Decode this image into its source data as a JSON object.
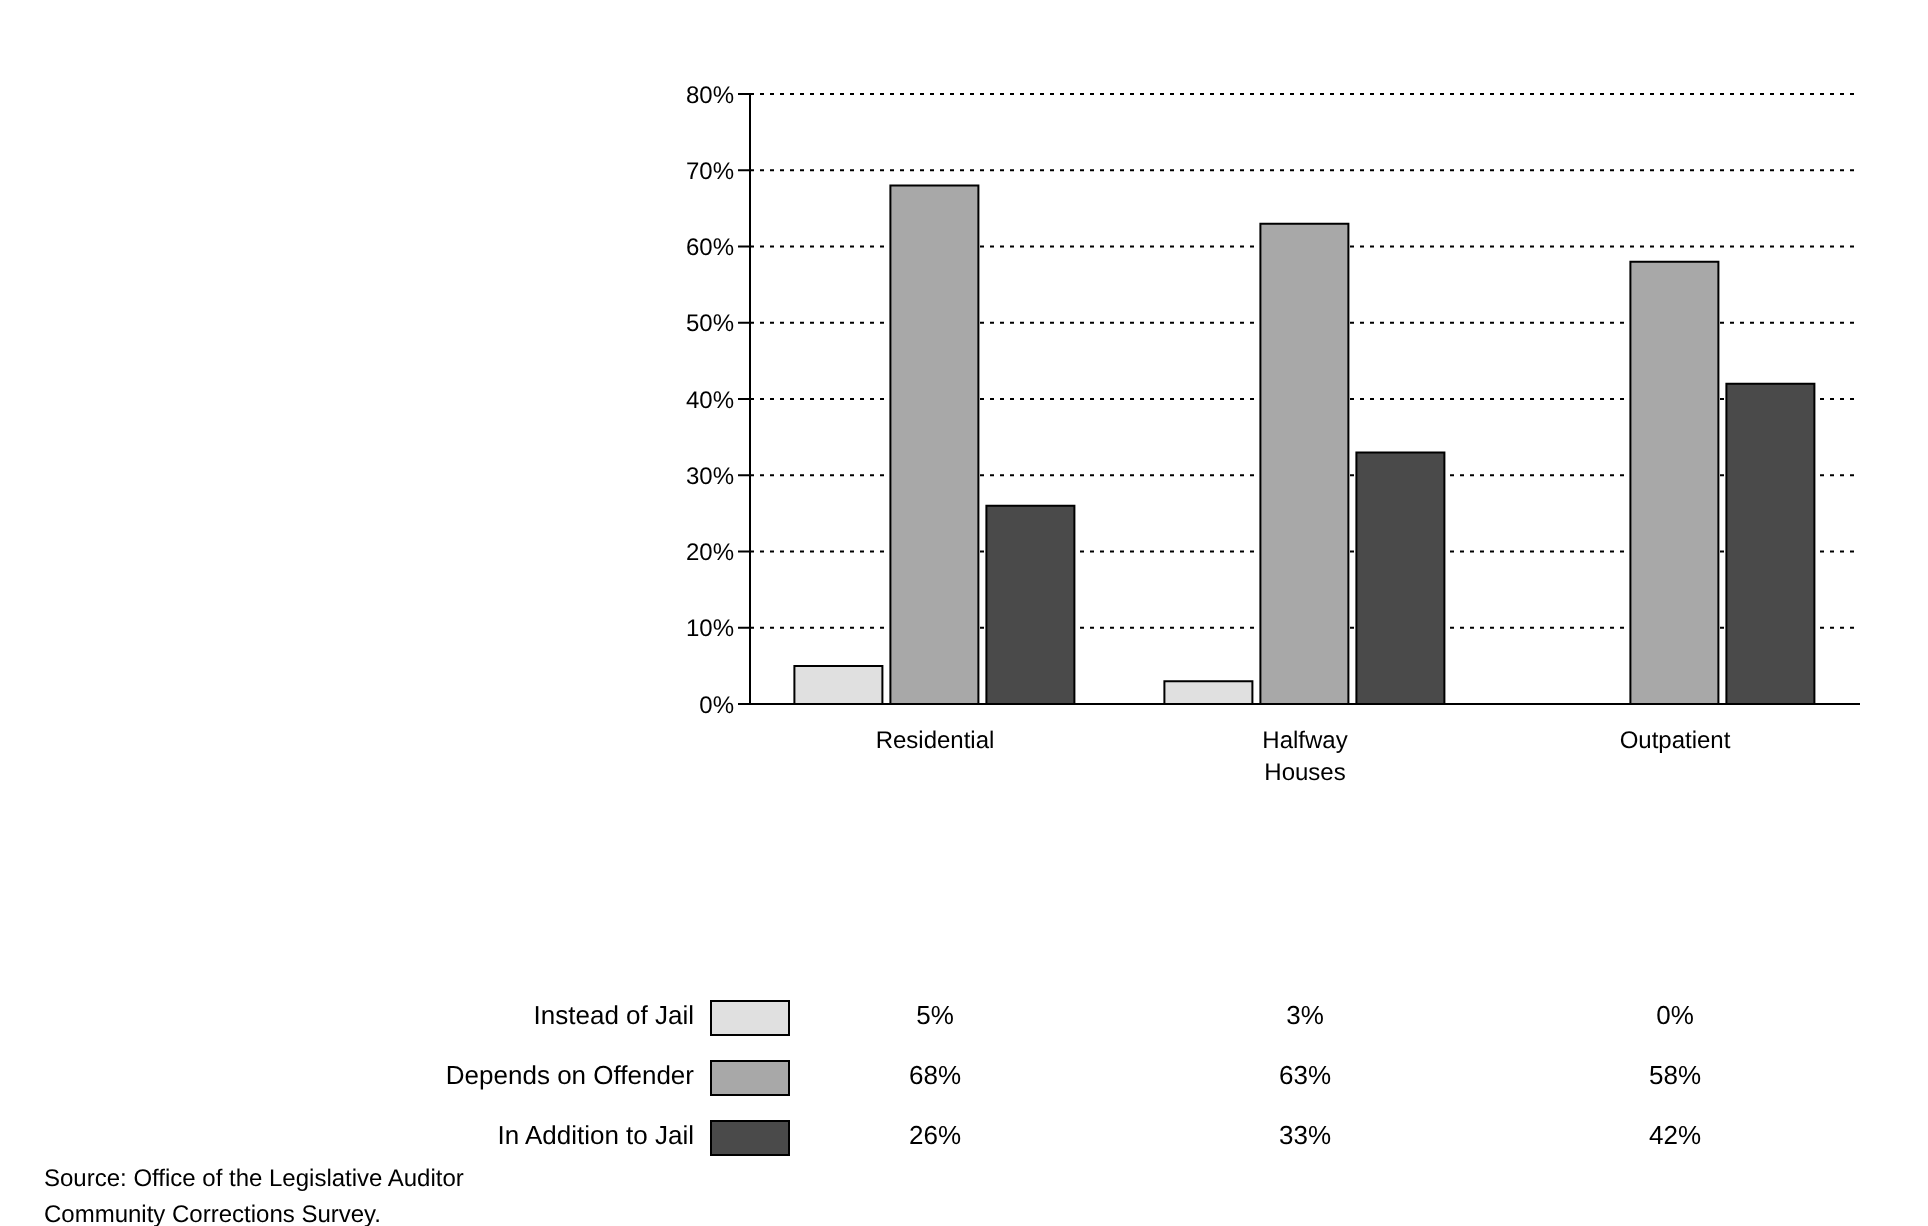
{
  "chart_data": {
    "type": "bar",
    "categories": [
      "Residential",
      "Halfway Houses",
      "Outpatient"
    ],
    "series": [
      {
        "name": "Instead of Jail",
        "color": "#e0e0e0",
        "values": [
          5,
          3,
          0
        ],
        "value_labels": [
          "5%",
          "3%",
          "0%"
        ]
      },
      {
        "name": "Depends on Offender",
        "color": "#a8a8a8",
        "values": [
          68,
          63,
          58
        ],
        "value_labels": [
          "68%",
          "63%",
          "58%"
        ]
      },
      {
        "name": "In Addition to Jail",
        "color": "#4a4a4a",
        "values": [
          26,
          33,
          42
        ],
        "value_labels": [
          "26%",
          "33%",
          "42%"
        ]
      }
    ],
    "ylim": [
      0,
      80
    ],
    "yticks": [
      {
        "value": 0,
        "label": "0%"
      },
      {
        "value": 10,
        "label": "10%"
      },
      {
        "value": 20,
        "label": "20%"
      },
      {
        "value": 30,
        "label": "30%"
      },
      {
        "value": 40,
        "label": "40%"
      },
      {
        "value": 50,
        "label": "50%"
      },
      {
        "value": 60,
        "label": "60%"
      },
      {
        "value": 70,
        "label": "70%"
      },
      {
        "value": 80,
        "label": "80%"
      }
    ],
    "grid": "y",
    "legend": "bottom",
    "annotations": [
      "Source: Office of the Legislative Auditor Community Corrections Survey."
    ]
  }
}
